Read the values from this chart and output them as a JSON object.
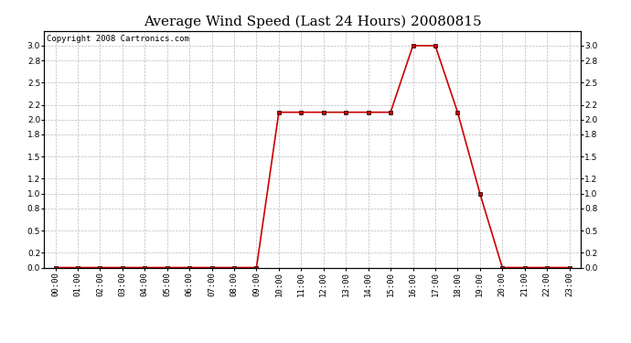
{
  "title": "Average Wind Speed (Last 24 Hours) 20080815",
  "copyright_text": "Copyright 2008 Cartronics.com",
  "x_labels": [
    "00:00",
    "01:00",
    "02:00",
    "03:00",
    "04:00",
    "05:00",
    "06:00",
    "07:00",
    "08:00",
    "09:00",
    "10:00",
    "11:00",
    "12:00",
    "13:00",
    "14:00",
    "15:00",
    "16:00",
    "17:00",
    "18:00",
    "19:00",
    "20:00",
    "21:00",
    "22:00",
    "23:00"
  ],
  "y_values": [
    0.0,
    0.0,
    0.0,
    0.0,
    0.0,
    0.0,
    0.0,
    0.0,
    0.0,
    0.0,
    2.1,
    2.1,
    2.1,
    2.1,
    2.1,
    2.1,
    3.0,
    3.0,
    2.1,
    1.0,
    0.0,
    0.0,
    0.0,
    0.0
  ],
  "line_color": "#cc0000",
  "marker": "s",
  "marker_size": 2.5,
  "marker_facecolor": "#cc0000",
  "marker_edgecolor": "#000000",
  "ylim_min": 0.0,
  "ylim_max": 3.2,
  "yticks": [
    0.0,
    0.2,
    0.5,
    0.8,
    1.0,
    1.2,
    1.5,
    1.8,
    2.0,
    2.2,
    2.5,
    2.8,
    3.0
  ],
  "background_color": "#ffffff",
  "plot_bg_color": "#ffffff",
  "grid_color": "#bbbbbb",
  "title_fontsize": 11,
  "tick_fontsize": 6.5,
  "copyright_fontsize": 6.5,
  "linewidth": 1.2
}
